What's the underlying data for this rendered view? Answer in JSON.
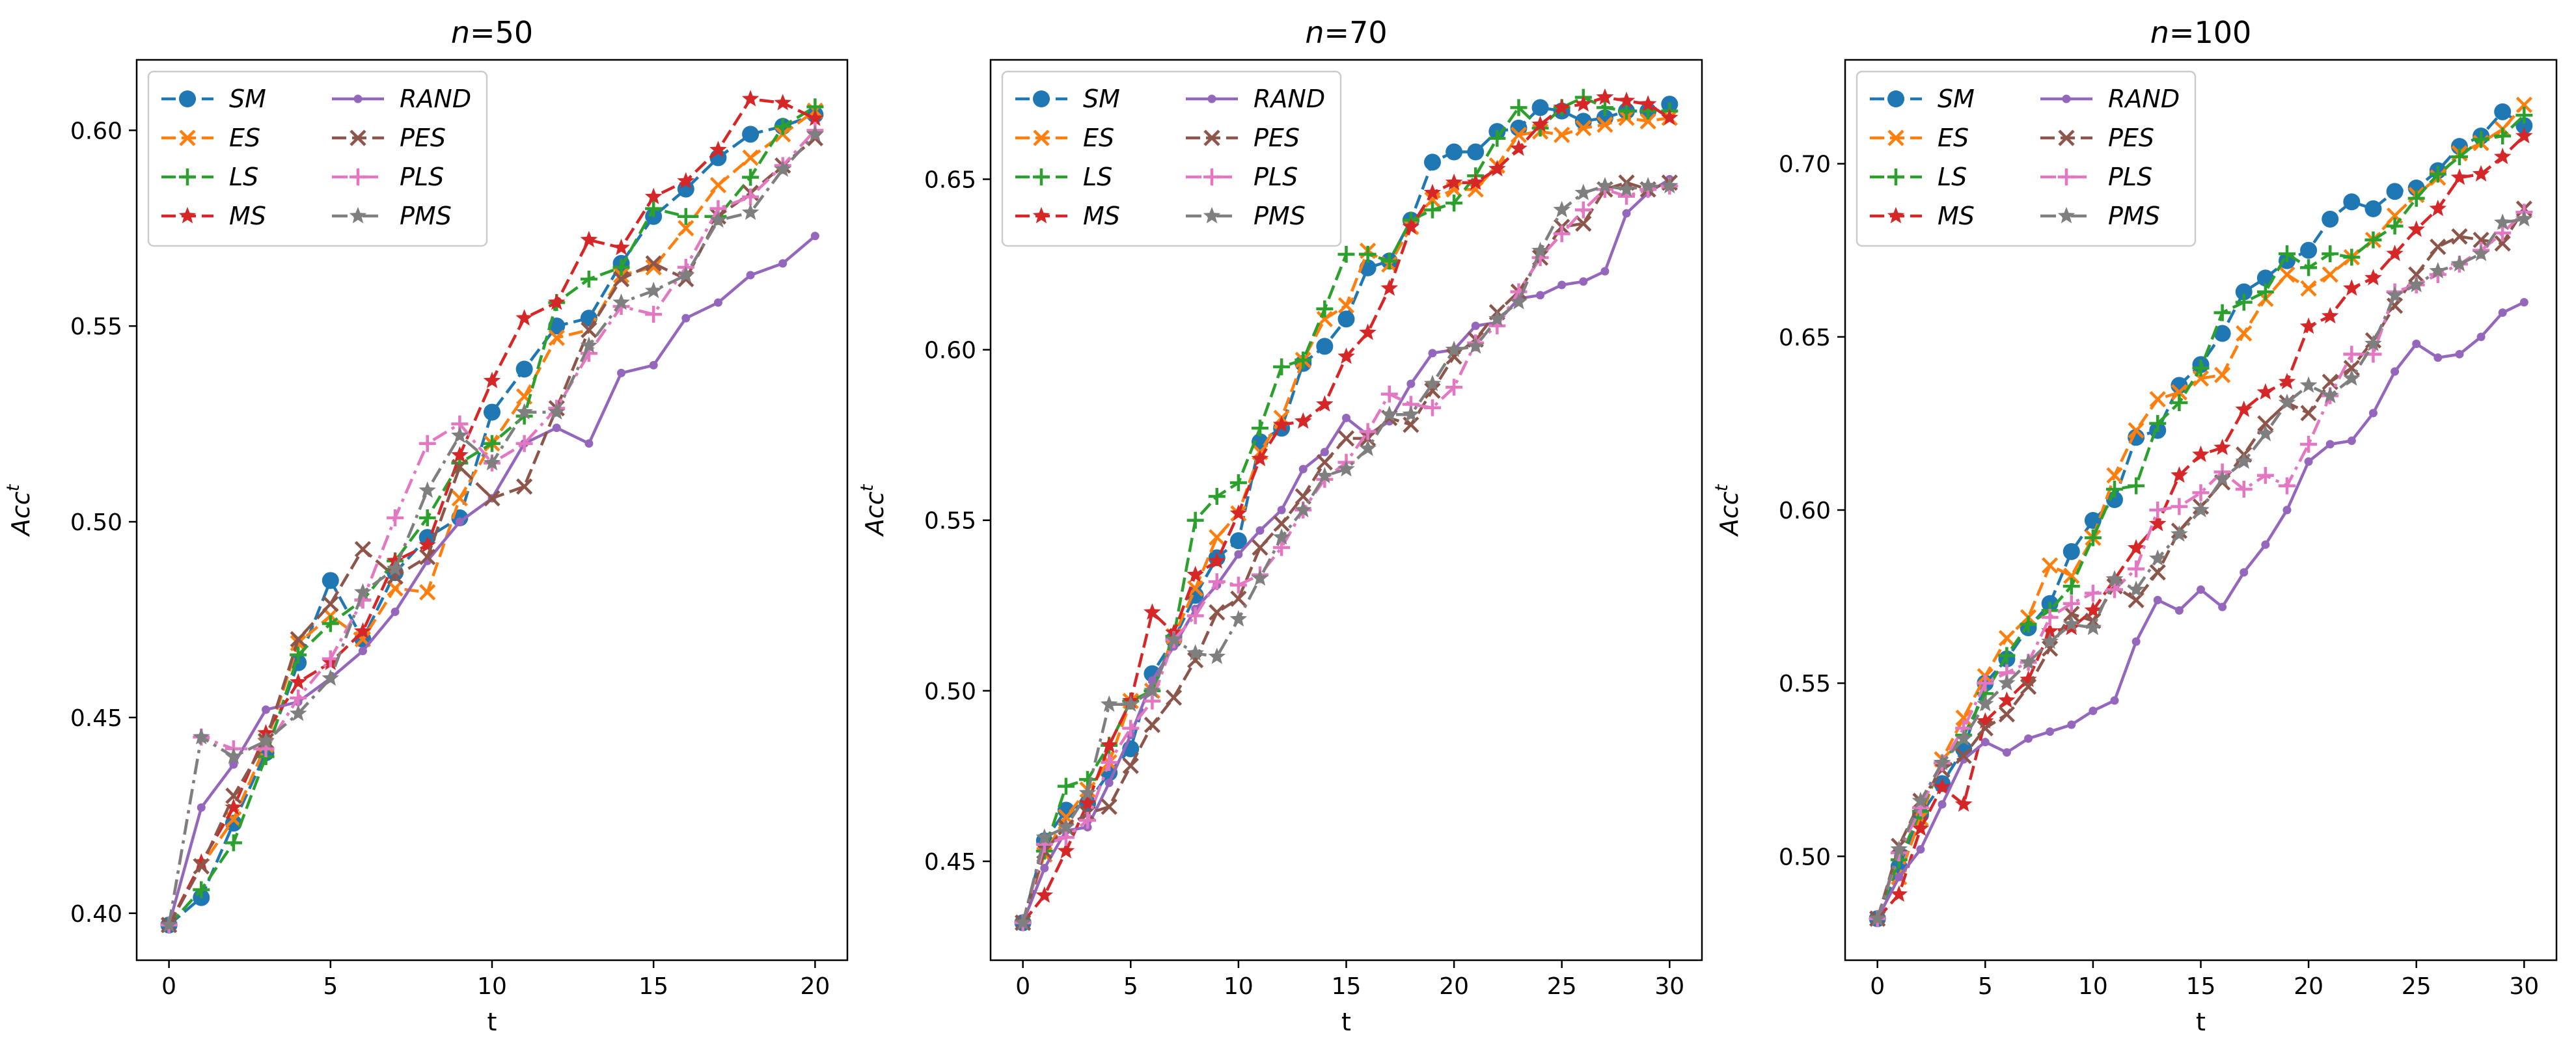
{
  "figure": {
    "ylabel_base": "Acc",
    "ylabel_sup": "t",
    "xlabel": "t"
  },
  "legend": {
    "entries": [
      {
        "name": "SM",
        "color": "#1f77b4",
        "marker": "circle",
        "dash": "dashed"
      },
      {
        "name": "ES",
        "color": "#ff7f0e",
        "marker": "x",
        "dash": "dashed"
      },
      {
        "name": "LS",
        "color": "#2ca02c",
        "marker": "plus",
        "dash": "dashed"
      },
      {
        "name": "MS",
        "color": "#d62728",
        "marker": "star",
        "dash": "dashed"
      },
      {
        "name": "RAND",
        "color": "#9467bd",
        "marker": "dot",
        "dash": "solid"
      },
      {
        "name": "PES",
        "color": "#8c564b",
        "marker": "x",
        "dash": "dashed"
      },
      {
        "name": "PLS",
        "color": "#e377c2",
        "marker": "plus",
        "dash": "dashdot"
      },
      {
        "name": "PMS",
        "color": "#7f7f7f",
        "marker": "star",
        "dash": "dashdot"
      }
    ]
  },
  "chart_data": [
    {
      "type": "line",
      "title_n": "n",
      "title_value": "=50",
      "xlim": [
        -1,
        21
      ],
      "ylim": [
        0.388,
        0.618
      ],
      "xticks": [
        0,
        5,
        10,
        15,
        20
      ],
      "xtick_labels": [
        "0",
        "5",
        "10",
        "15",
        "20"
      ],
      "yticks": [
        0.4,
        0.45,
        0.5,
        0.55,
        0.6
      ],
      "ytick_labels": [
        "0.40",
        "0.45",
        "0.50",
        "0.55",
        "0.60"
      ],
      "x": [
        0,
        1,
        2,
        3,
        4,
        5,
        6,
        7,
        8,
        9,
        10,
        11,
        12,
        13,
        14,
        15,
        16,
        17,
        18,
        19,
        20
      ],
      "series": [
        {
          "name": "SM",
          "values": [
            0.397,
            0.404,
            0.423,
            0.441,
            0.464,
            0.485,
            0.47,
            0.487,
            0.496,
            0.501,
            0.528,
            0.539,
            0.55,
            0.552,
            0.566,
            0.578,
            0.585,
            0.593,
            0.599,
            0.601,
            0.604
          ]
        },
        {
          "name": "ES",
          "values": [
            0.397,
            0.412,
            0.424,
            0.443,
            0.469,
            0.476,
            0.47,
            0.483,
            0.482,
            0.506,
            0.52,
            0.532,
            0.547,
            0.549,
            0.563,
            0.565,
            0.575,
            0.586,
            0.593,
            0.599,
            0.605
          ]
        },
        {
          "name": "LS",
          "values": [
            0.397,
            0.406,
            0.418,
            0.44,
            0.466,
            0.474,
            0.48,
            0.49,
            0.501,
            0.515,
            0.52,
            0.527,
            0.556,
            0.562,
            0.565,
            0.58,
            0.578,
            0.578,
            0.588,
            0.601,
            0.606
          ]
        },
        {
          "name": "MS",
          "values": [
            0.397,
            0.413,
            0.427,
            0.446,
            0.459,
            0.464,
            0.472,
            0.49,
            0.494,
            0.517,
            0.536,
            0.552,
            0.556,
            0.572,
            0.57,
            0.583,
            0.587,
            0.595,
            0.608,
            0.607,
            0.603
          ]
        },
        {
          "name": "RAND",
          "values": [
            0.397,
            0.427,
            0.438,
            0.452,
            0.454,
            0.46,
            0.467,
            0.477,
            0.49,
            0.5,
            0.506,
            0.52,
            0.524,
            0.52,
            0.538,
            0.54,
            0.552,
            0.556,
            0.563,
            0.566,
            0.573
          ]
        },
        {
          "name": "PES",
          "values": [
            0.397,
            0.412,
            0.43,
            0.444,
            0.47,
            0.479,
            0.493,
            0.486,
            0.491,
            0.514,
            0.506,
            0.509,
            0.529,
            0.549,
            0.562,
            0.566,
            0.562,
            0.578,
            0.584,
            0.591,
            0.598
          ]
        },
        {
          "name": "PLS",
          "values": [
            0.397,
            0.445,
            0.442,
            0.442,
            0.455,
            0.465,
            0.48,
            0.501,
            0.52,
            0.525,
            0.515,
            0.52,
            0.529,
            0.543,
            0.555,
            0.553,
            0.565,
            0.58,
            0.583,
            0.591,
            0.6
          ]
        },
        {
          "name": "PMS",
          "values": [
            0.397,
            0.445,
            0.44,
            0.444,
            0.451,
            0.46,
            0.482,
            0.488,
            0.508,
            0.522,
            0.515,
            0.528,
            0.528,
            0.545,
            0.556,
            0.559,
            0.563,
            0.577,
            0.579,
            0.59,
            0.599
          ]
        }
      ]
    },
    {
      "type": "line",
      "title_n": "n",
      "title_value": "=70",
      "xlim": [
        -1.5,
        31.5
      ],
      "ylim": [
        0.421,
        0.685
      ],
      "xticks": [
        0,
        5,
        10,
        15,
        20,
        25,
        30
      ],
      "xtick_labels": [
        "0",
        "5",
        "10",
        "15",
        "20",
        "25",
        "30"
      ],
      "yticks": [
        0.45,
        0.5,
        0.55,
        0.6,
        0.65
      ],
      "ytick_labels": [
        "0.45",
        "0.50",
        "0.55",
        "0.60",
        "0.65"
      ],
      "x": [
        0,
        1,
        2,
        3,
        4,
        5,
        6,
        7,
        8,
        9,
        10,
        11,
        12,
        13,
        14,
        15,
        16,
        17,
        18,
        19,
        20,
        21,
        22,
        23,
        24,
        25,
        26,
        27,
        28,
        29,
        30
      ],
      "series": [
        {
          "name": "SM",
          "values": [
            0.432,
            0.456,
            0.465,
            0.467,
            0.476,
            0.483,
            0.505,
            0.515,
            0.528,
            0.539,
            0.544,
            0.573,
            0.577,
            0.596,
            0.601,
            0.609,
            0.624,
            0.626,
            0.638,
            0.655,
            0.658,
            0.658,
            0.664,
            0.665,
            0.671,
            0.67,
            0.667,
            0.668,
            0.67,
            0.67,
            0.672
          ]
        },
        {
          "name": "ES",
          "values": [
            0.432,
            0.452,
            0.463,
            0.471,
            0.479,
            0.497,
            0.5,
            0.516,
            0.53,
            0.545,
            0.552,
            0.57,
            0.58,
            0.597,
            0.609,
            0.613,
            0.629,
            0.625,
            0.636,
            0.644,
            0.647,
            0.647,
            0.654,
            0.663,
            0.664,
            0.663,
            0.665,
            0.666,
            0.668,
            0.667,
            0.668
          ]
        },
        {
          "name": "LS",
          "values": [
            0.432,
            0.453,
            0.472,
            0.474,
            0.484,
            0.497,
            0.5,
            0.516,
            0.55,
            0.557,
            0.561,
            0.577,
            0.595,
            0.597,
            0.612,
            0.628,
            0.628,
            0.626,
            0.638,
            0.641,
            0.643,
            0.651,
            0.662,
            0.671,
            0.665,
            0.671,
            0.674,
            0.671,
            0.67,
            0.67,
            0.67
          ]
        },
        {
          "name": "MS",
          "values": [
            0.432,
            0.44,
            0.453,
            0.467,
            0.484,
            0.497,
            0.523,
            0.517,
            0.534,
            0.538,
            0.552,
            0.568,
            0.578,
            0.579,
            0.584,
            0.598,
            0.605,
            0.618,
            0.636,
            0.646,
            0.649,
            0.649,
            0.653,
            0.659,
            0.666,
            0.671,
            0.672,
            0.674,
            0.673,
            0.672,
            0.668
          ]
        },
        {
          "name": "RAND",
          "values": [
            0.432,
            0.448,
            0.459,
            0.46,
            0.473,
            0.487,
            0.503,
            0.513,
            0.524,
            0.531,
            0.54,
            0.547,
            0.553,
            0.565,
            0.57,
            0.58,
            0.575,
            0.579,
            0.59,
            0.599,
            0.6,
            0.607,
            0.608,
            0.615,
            0.616,
            0.619,
            0.62,
            0.623,
            0.64,
            0.646,
            0.65
          ]
        },
        {
          "name": "PES",
          "values": [
            0.432,
            0.453,
            0.46,
            0.464,
            0.466,
            0.478,
            0.49,
            0.498,
            0.509,
            0.523,
            0.527,
            0.542,
            0.549,
            0.557,
            0.567,
            0.574,
            0.574,
            0.58,
            0.578,
            0.588,
            0.598,
            0.603,
            0.611,
            0.617,
            0.627,
            0.636,
            0.637,
            0.647,
            0.649,
            0.647,
            0.649
          ]
        },
        {
          "name": "PLS",
          "values": [
            0.432,
            0.455,
            0.457,
            0.462,
            0.479,
            0.489,
            0.497,
            0.515,
            0.522,
            0.532,
            0.531,
            0.534,
            0.542,
            0.553,
            0.562,
            0.567,
            0.576,
            0.587,
            0.584,
            0.583,
            0.589,
            0.602,
            0.607,
            0.617,
            0.627,
            0.634,
            0.641,
            0.647,
            0.645,
            0.647,
            0.648
          ]
        },
        {
          "name": "PMS",
          "values": [
            0.432,
            0.457,
            0.46,
            0.47,
            0.496,
            0.496,
            0.5,
            0.515,
            0.511,
            0.51,
            0.521,
            0.533,
            0.545,
            0.553,
            0.563,
            0.565,
            0.571,
            0.581,
            0.581,
            0.59,
            0.6,
            0.601,
            0.609,
            0.614,
            0.629,
            0.641,
            0.646,
            0.648,
            0.647,
            0.648,
            0.648
          ]
        }
      ]
    },
    {
      "type": "line",
      "title_n": "n",
      "title_value": "=100",
      "xlim": [
        -1.5,
        31.5
      ],
      "ylim": [
        0.47,
        0.73
      ],
      "xticks": [
        0,
        5,
        10,
        15,
        20,
        25,
        30
      ],
      "xtick_labels": [
        "0",
        "5",
        "10",
        "15",
        "20",
        "25",
        "30"
      ],
      "yticks": [
        0.5,
        0.55,
        0.6,
        0.65,
        0.7
      ],
      "ytick_labels": [
        "0.50",
        "0.55",
        "0.60",
        "0.65",
        "0.70"
      ],
      "x": [
        0,
        1,
        2,
        3,
        4,
        5,
        6,
        7,
        8,
        9,
        10,
        11,
        12,
        13,
        14,
        15,
        16,
        17,
        18,
        19,
        20,
        21,
        22,
        23,
        24,
        25,
        26,
        27,
        28,
        29,
        30
      ],
      "series": [
        {
          "name": "SM",
          "values": [
            0.482,
            0.497,
            0.512,
            0.521,
            0.531,
            0.55,
            0.557,
            0.566,
            0.573,
            0.588,
            0.597,
            0.603,
            0.621,
            0.623,
            0.636,
            0.642,
            0.651,
            0.663,
            0.667,
            0.672,
            0.675,
            0.684,
            0.689,
            0.687,
            0.692,
            0.693,
            0.698,
            0.705,
            0.708,
            0.715,
            0.711
          ]
        },
        {
          "name": "ES",
          "values": [
            0.482,
            0.494,
            0.511,
            0.528,
            0.54,
            0.552,
            0.563,
            0.569,
            0.584,
            0.581,
            0.592,
            0.61,
            0.623,
            0.632,
            0.634,
            0.638,
            0.639,
            0.651,
            0.661,
            0.668,
            0.664,
            0.668,
            0.673,
            0.678,
            0.685,
            0.691,
            0.696,
            0.703,
            0.706,
            0.71,
            0.717
          ]
        },
        {
          "name": "LS",
          "values": [
            0.482,
            0.499,
            0.513,
            0.527,
            0.535,
            0.547,
            0.558,
            0.567,
            0.571,
            0.578,
            0.592,
            0.606,
            0.607,
            0.625,
            0.631,
            0.641,
            0.657,
            0.66,
            0.663,
            0.674,
            0.67,
            0.674,
            0.673,
            0.678,
            0.682,
            0.69,
            0.697,
            0.702,
            0.707,
            0.708,
            0.714
          ]
        },
        {
          "name": "MS",
          "values": [
            0.482,
            0.489,
            0.508,
            0.52,
            0.515,
            0.539,
            0.545,
            0.551,
            0.565,
            0.566,
            0.571,
            0.58,
            0.589,
            0.596,
            0.61,
            0.616,
            0.618,
            0.629,
            0.634,
            0.637,
            0.653,
            0.656,
            0.664,
            0.667,
            0.674,
            0.681,
            0.687,
            0.696,
            0.697,
            0.702,
            0.708
          ]
        },
        {
          "name": "RAND",
          "values": [
            0.482,
            0.494,
            0.502,
            0.515,
            0.528,
            0.533,
            0.53,
            0.534,
            0.536,
            0.538,
            0.542,
            0.545,
            0.562,
            0.574,
            0.571,
            0.577,
            0.572,
            0.582,
            0.59,
            0.6,
            0.614,
            0.619,
            0.62,
            0.628,
            0.64,
            0.648,
            0.644,
            0.645,
            0.65,
            0.657,
            0.66
          ]
        },
        {
          "name": "PES",
          "values": [
            0.482,
            0.503,
            0.516,
            0.525,
            0.529,
            0.537,
            0.541,
            0.549,
            0.56,
            0.57,
            0.568,
            0.578,
            0.574,
            0.582,
            0.594,
            0.601,
            0.608,
            0.616,
            0.625,
            0.631,
            0.628,
            0.637,
            0.641,
            0.649,
            0.659,
            0.668,
            0.676,
            0.679,
            0.678,
            0.677,
            0.687
          ]
        },
        {
          "name": "PLS",
          "values": [
            0.482,
            0.501,
            0.514,
            0.527,
            0.537,
            0.55,
            0.553,
            0.556,
            0.569,
            0.573,
            0.576,
            0.577,
            0.583,
            0.6,
            0.601,
            0.605,
            0.611,
            0.606,
            0.61,
            0.607,
            0.619,
            0.633,
            0.645,
            0.645,
            0.663,
            0.665,
            0.668,
            0.671,
            0.675,
            0.68,
            0.686
          ]
        },
        {
          "name": "PMS",
          "values": [
            0.482,
            0.502,
            0.516,
            0.527,
            0.534,
            0.544,
            0.55,
            0.556,
            0.562,
            0.567,
            0.566,
            0.58,
            0.577,
            0.586,
            0.593,
            0.6,
            0.609,
            0.614,
            0.622,
            0.631,
            0.636,
            0.633,
            0.638,
            0.648,
            0.662,
            0.665,
            0.669,
            0.671,
            0.674,
            0.683,
            0.684
          ]
        }
      ]
    }
  ]
}
